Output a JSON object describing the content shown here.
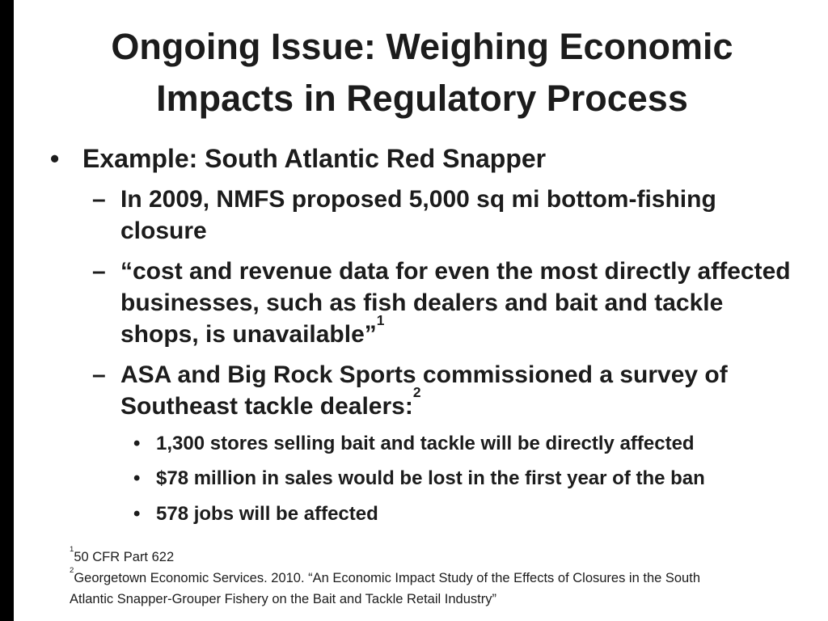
{
  "slide": {
    "background_color": "#ffffff",
    "side_bar_color": "#000000",
    "text_color": "#1c1c1c",
    "title_lines": [
      "Ongoing Issue: Weighing Economic",
      "Impacts in Regulatory Process"
    ],
    "bullets": {
      "level1": {
        "marker": "•",
        "text": "Example: South Atlantic Red Snapper"
      },
      "level2": [
        {
          "marker": "–",
          "text": "In 2009, NMFS proposed 5,000 sq mi bottom-fishing closure",
          "sup": ""
        },
        {
          "marker": "–",
          "text": "“cost and revenue data for even the most directly affected businesses, such as fish dealers and bait and tackle shops, is unavailable”",
          "sup": "1"
        },
        {
          "marker": "–",
          "text": "ASA and Big Rock Sports commissioned a survey of Southeast tackle dealers:",
          "sup": "2"
        }
      ],
      "level3": [
        {
          "marker": "•",
          "text": "1,300 stores selling bait and tackle will be directly affected"
        },
        {
          "marker": "•",
          "text": "$78 million in sales would be lost in the first year of the ban"
        },
        {
          "marker": "•",
          "text": "578 jobs will be affected"
        }
      ]
    },
    "footnotes": [
      {
        "sup": "1",
        "text": "50 CFR Part 622"
      },
      {
        "sup": "2",
        "text": "Georgetown Economic Services. 2010. “An Economic Impact Study of the Effects of Closures in the South Atlantic Snapper-Grouper Fishery on the Bait and Tackle Retail Industry”"
      }
    ]
  }
}
